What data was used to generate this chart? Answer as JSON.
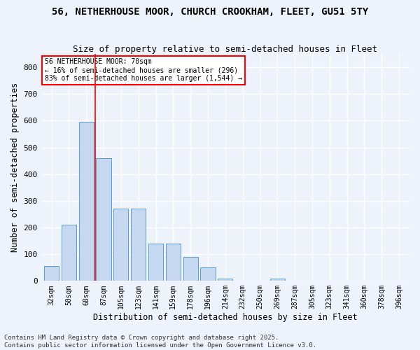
{
  "title1": "56, NETHERHOUSE MOOR, CHURCH CROOKHAM, FLEET, GU51 5TY",
  "title2": "Size of property relative to semi-detached houses in Fleet",
  "xlabel": "Distribution of semi-detached houses by size in Fleet",
  "ylabel": "Number of semi-detached properties",
  "categories": [
    "32sqm",
    "50sqm",
    "68sqm",
    "87sqm",
    "105sqm",
    "123sqm",
    "141sqm",
    "159sqm",
    "178sqm",
    "196sqm",
    "214sqm",
    "232sqm",
    "250sqm",
    "269sqm",
    "287sqm",
    "305sqm",
    "323sqm",
    "341sqm",
    "360sqm",
    "378sqm",
    "396sqm"
  ],
  "values": [
    55,
    210,
    595,
    460,
    270,
    270,
    140,
    140,
    90,
    50,
    8,
    0,
    0,
    8,
    0,
    0,
    0,
    0,
    0,
    0,
    0
  ],
  "bar_color": "#c5d8f0",
  "bar_edge_color": "#5b9bd5",
  "vline_x": 2.5,
  "vline_color": "red",
  "annotation_text": "56 NETHERHOUSE MOOR: 70sqm\n← 16% of semi-detached houses are smaller (296)\n83% of semi-detached houses are larger (1,544) →",
  "annotation_box_color": "white",
  "annotation_box_edge_color": "red",
  "ylim": [
    0,
    850
  ],
  "yticks": [
    0,
    100,
    200,
    300,
    400,
    500,
    600,
    700,
    800
  ],
  "footnote": "Contains HM Land Registry data © Crown copyright and database right 2025.\nContains public sector information licensed under the Open Government Licence v3.0.",
  "background_color": "#eef2fa",
  "grid_color": "white",
  "title_fontsize": 10,
  "subtitle_fontsize": 9,
  "tick_fontsize": 7,
  "label_fontsize": 8.5,
  "footnote_fontsize": 6.5
}
